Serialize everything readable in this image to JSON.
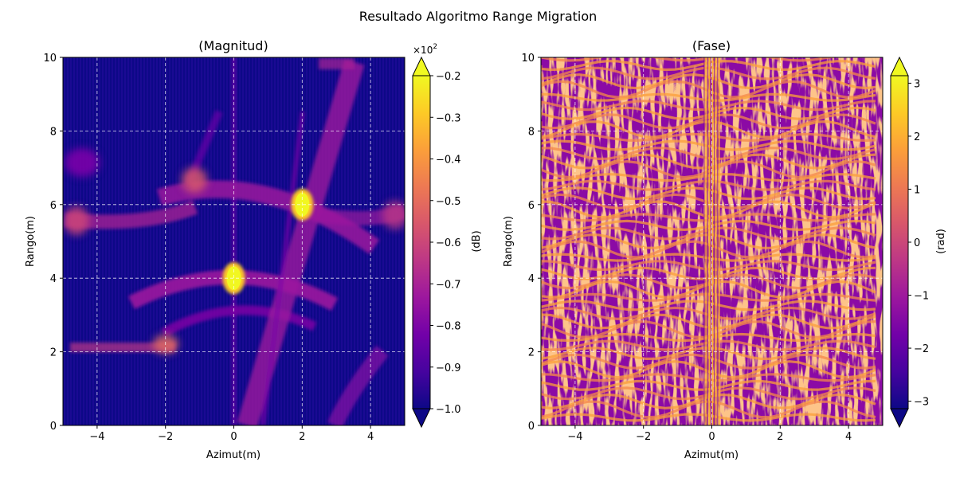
{
  "figure": {
    "suptitle": "Resultado Algoritmo Range Migration"
  },
  "colors": {
    "colormap": [
      "#0d0887",
      "#46039f",
      "#7201a8",
      "#9c179e",
      "#bd3786",
      "#d8576b",
      "#ed7953",
      "#fb9f3a",
      "#fdca26",
      "#f0f921"
    ],
    "grid": "#ffffff"
  },
  "chart_data": [
    {
      "type": "heatmap",
      "title": "(Magnitud)",
      "xlabel": "Azimut(m)",
      "ylabel": "Rango(m)",
      "xlim": [
        -5,
        5
      ],
      "ylim": [
        0,
        10
      ],
      "xticks": [
        -4,
        -2,
        0,
        2,
        4
      ],
      "xtick_labels": [
        "−4",
        "−2",
        "0",
        "2",
        "4"
      ],
      "yticks": [
        0,
        2,
        4,
        6,
        8,
        10
      ],
      "ytick_labels": [
        "0",
        "2",
        "4",
        "6",
        "8",
        "10"
      ],
      "grid": true,
      "targets": [
        {
          "x": 0,
          "y": 4
        },
        {
          "x": 2,
          "y": 6
        }
      ],
      "colorbar": {
        "label": "(dB)",
        "multiplier": "×10",
        "multiplier_exp": "2",
        "range": [
          -1.0,
          -0.2
        ],
        "ticks": [
          -1.0,
          -0.9,
          -0.8,
          -0.7,
          -0.6,
          -0.5,
          -0.4,
          -0.3,
          -0.2
        ],
        "tick_labels": [
          "−1.0",
          "−0.9",
          "−0.8",
          "−0.7",
          "−0.6",
          "−0.5",
          "−0.4",
          "−0.3",
          "−0.2"
        ],
        "extend": "both"
      }
    },
    {
      "type": "heatmap",
      "title": "(Fase)",
      "xlabel": "Azimut(m)",
      "ylabel": "Rango(m)",
      "xlim": [
        -5,
        5
      ],
      "ylim": [
        0,
        10
      ],
      "xticks": [
        -4,
        -2,
        0,
        2,
        4
      ],
      "xtick_labels": [
        "−4",
        "−2",
        "0",
        "2",
        "4"
      ],
      "yticks": [
        0,
        2,
        4,
        6,
        8,
        10
      ],
      "ytick_labels": [
        "0",
        "2",
        "4",
        "6",
        "8",
        "10"
      ],
      "grid": true,
      "colorbar": {
        "label": "(rad)",
        "range": [
          -3.14159,
          3.14159
        ],
        "ticks": [
          -3,
          -2,
          -1,
          0,
          1,
          2,
          3
        ],
        "tick_labels": [
          "−3",
          "−2",
          "−1",
          "0",
          "1",
          "2",
          "3"
        ],
        "extend": "both"
      }
    }
  ]
}
